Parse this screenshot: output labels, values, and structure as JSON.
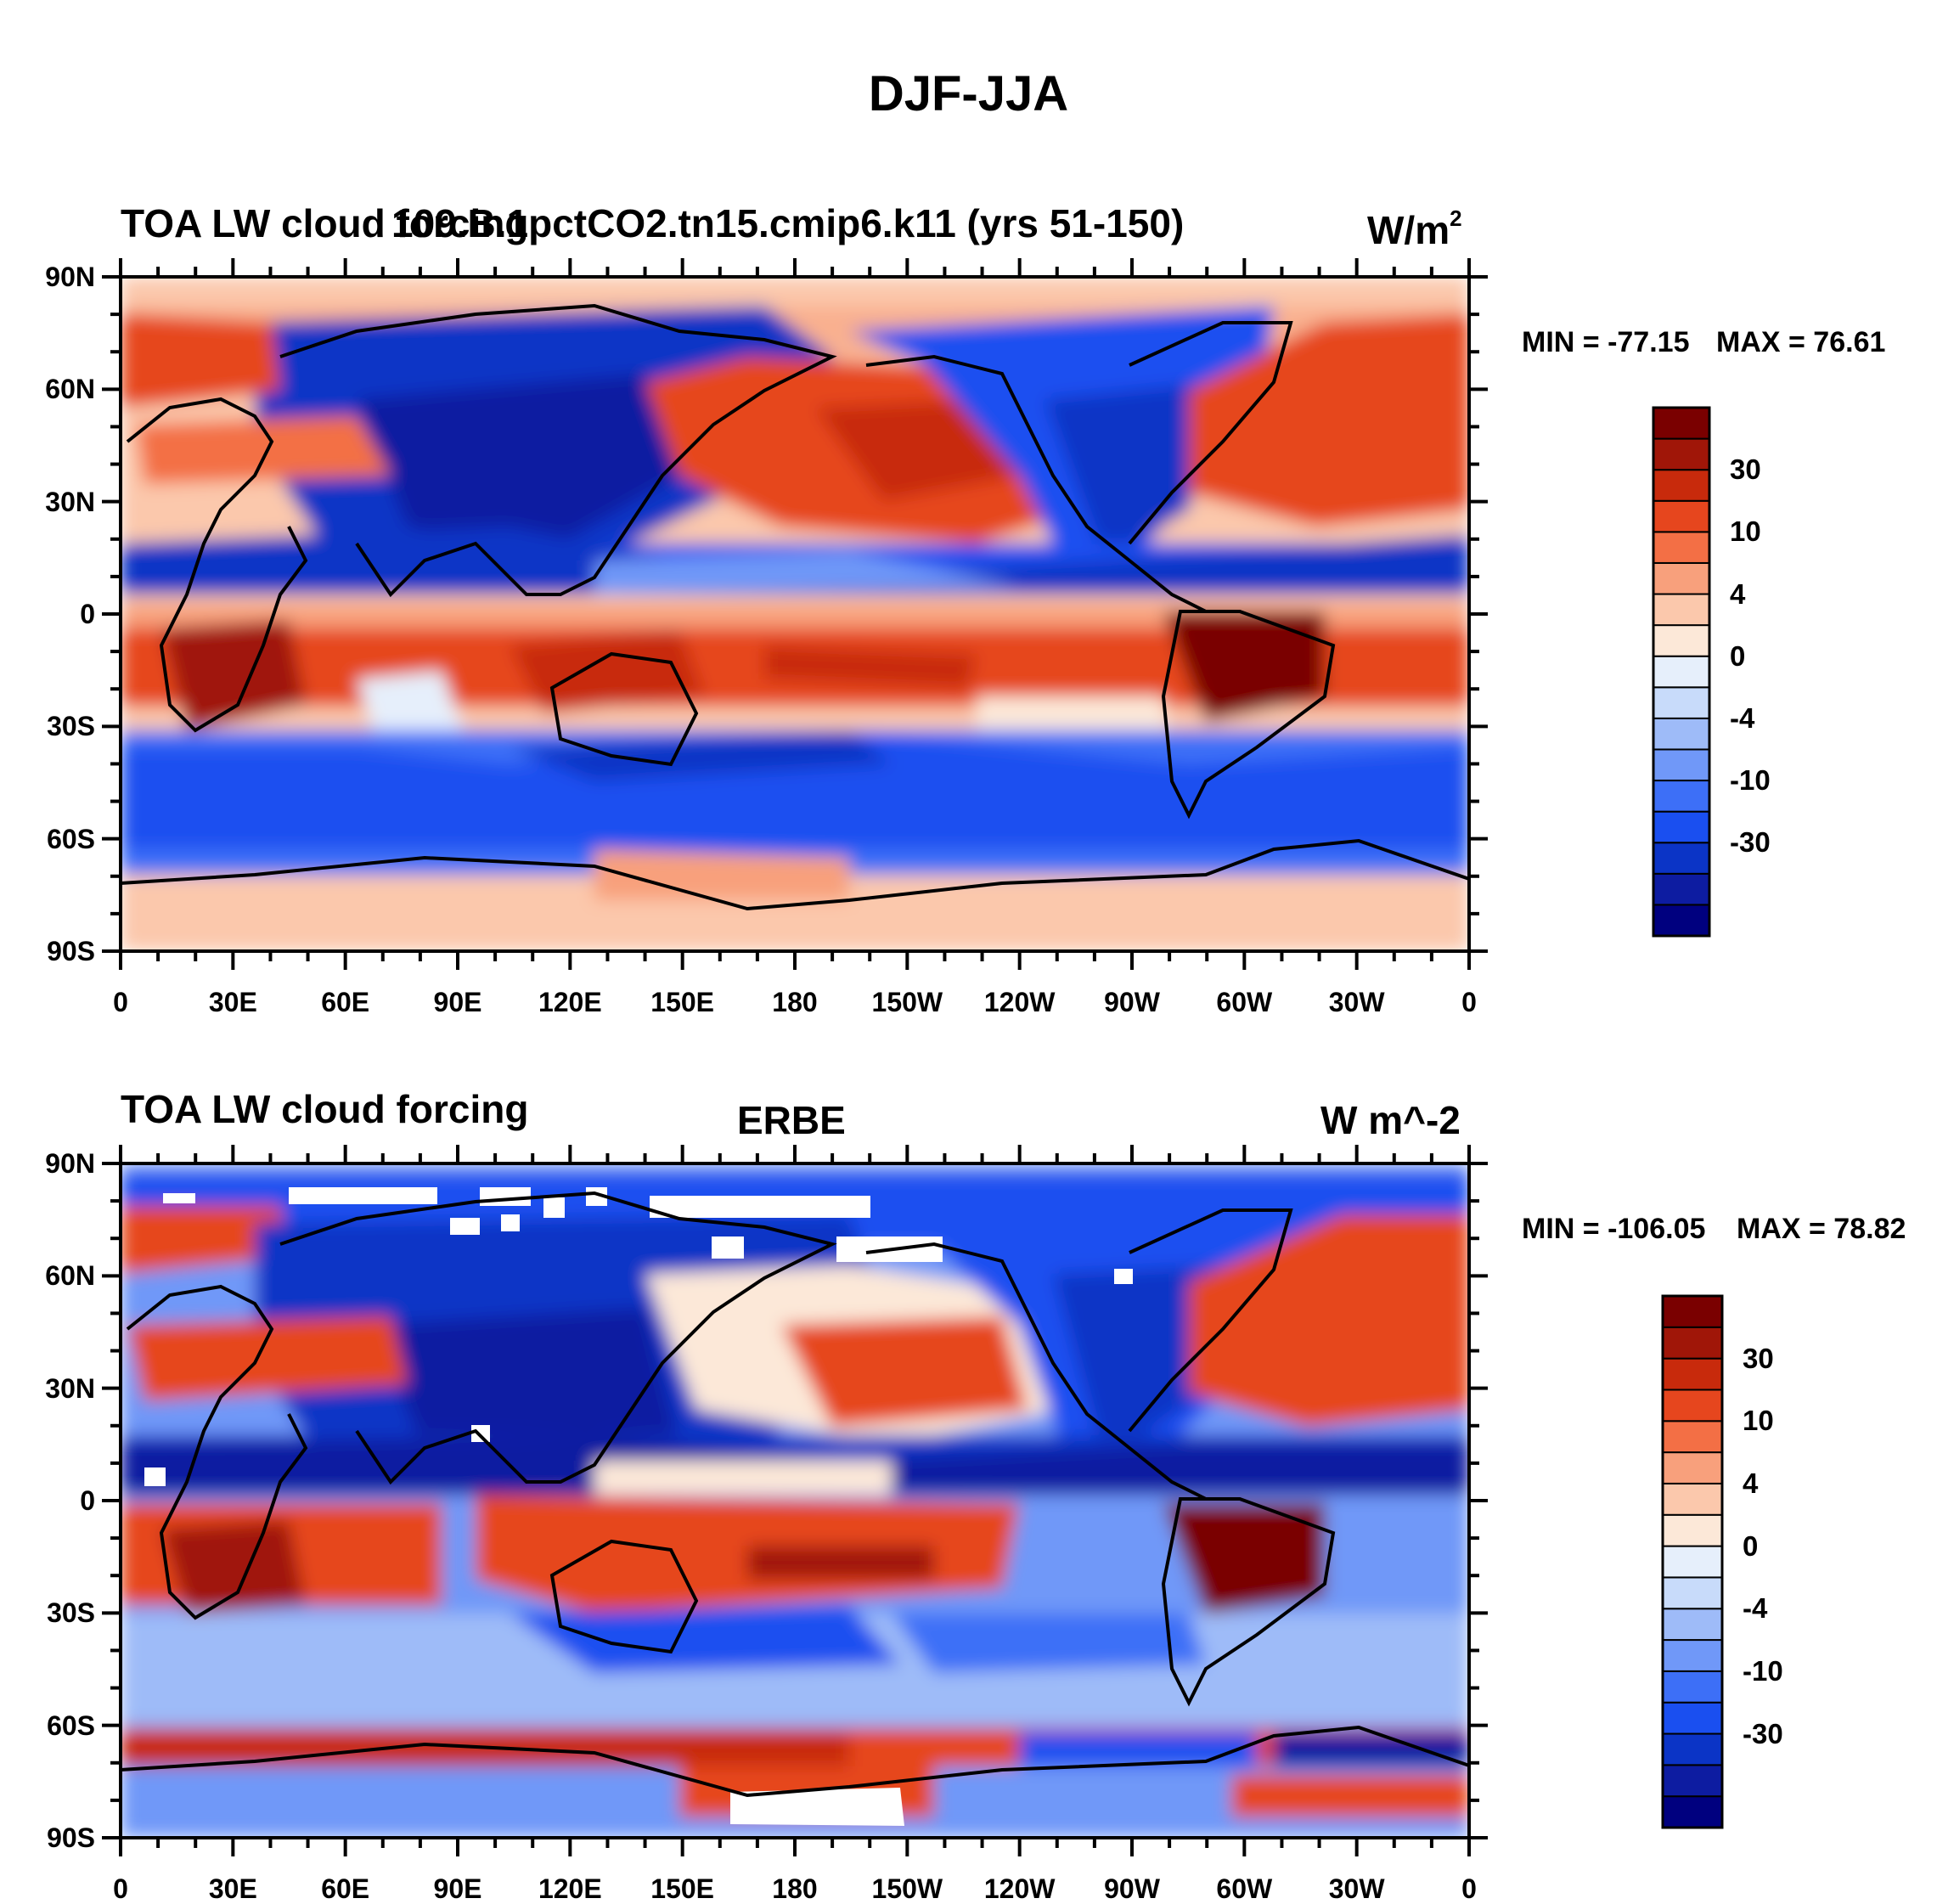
{
  "figure": {
    "title": "DJF-JJA"
  },
  "colors": {
    "levels_colors": [
      "#00007f",
      "#0d1ca1",
      "#0b34c6",
      "#1a4ff0",
      "#3d6ff7",
      "#7098f8",
      "#9ebbf8",
      "#c8dbfa",
      "#e6effb",
      "#fce8d8",
      "#fbc8ac",
      "#f8a07c",
      "#f36f45",
      "#e6461e",
      "#c82a0c",
      "#a01608",
      "#7a0000"
    ],
    "land_outline": "#000000",
    "missing": "#ffffff"
  },
  "axes": {
    "lat_labels": [
      "90N",
      "60N",
      "30N",
      "0",
      "30S",
      "60S",
      "90S"
    ],
    "lon_labels": [
      "0",
      "30E",
      "60E",
      "90E",
      "120E",
      "150E",
      "180",
      "150W",
      "120W",
      "90W",
      "60W",
      "30W",
      "0"
    ]
  },
  "panels": [
    {
      "left_title": "TOA LW cloud forcing",
      "center_title": "109.B.1pctCO2.tn15.cmip6.k11 (yrs 51-150)",
      "right_title": "W/m",
      "right_title_sup": "2",
      "min_label": "MIN = -77.15",
      "max_label": "MAX =  76.61",
      "colorbar_labels": [
        "30",
        "10",
        "4",
        "0",
        "-4",
        "-10",
        "-30"
      ]
    },
    {
      "left_title": "TOA LW cloud forcing",
      "center_title": "ERBE",
      "right_title": "W m^-2",
      "min_label": "MIN = -106.05",
      "max_label": "MAX =  78.82",
      "colorbar_labels": [
        "30",
        "10",
        "4",
        "0",
        "-4",
        "-10",
        "-30"
      ]
    }
  ]
}
